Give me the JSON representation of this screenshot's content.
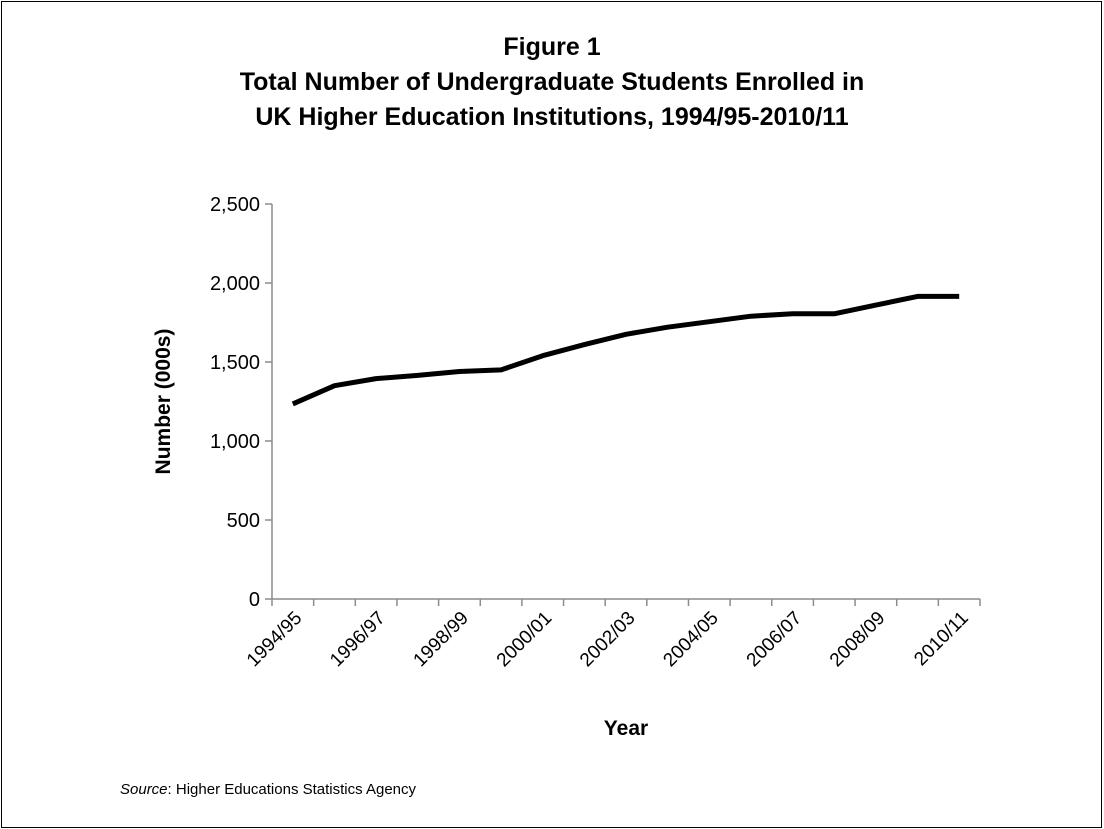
{
  "figure": {
    "number_label": "Figure 1",
    "title_line1": "Total Number of Undergraduate Students Enrolled in",
    "title_line2": "UK Higher Education Institutions, 1994/95-2010/11"
  },
  "source": {
    "label": "Source",
    "separator": ": ",
    "text": "Higher Educations Statistics Agency"
  },
  "chart_data": {
    "type": "line",
    "title": "Total Number of Undergraduate Students Enrolled in UK Higher Education Institutions, 1994/95-2010/11",
    "xlabel": "Year",
    "ylabel": "Number (000s)",
    "ylim": [
      0,
      2500
    ],
    "yticks": [
      0,
      500,
      1000,
      1500,
      2000,
      2500
    ],
    "ytick_labels": [
      "0",
      "500",
      "1,000",
      "1,500",
      "2,000",
      "2,500"
    ],
    "xtick_labels": [
      "1994/95",
      "1996/97",
      "1998/99",
      "2000/01",
      "2002/03",
      "2004/05",
      "2006/07",
      "2008/09",
      "2010/11"
    ],
    "grid": false,
    "line_color": "#000000",
    "x": [
      "1994/95",
      "1995/96",
      "1996/97",
      "1997/98",
      "1998/99",
      "1999/00",
      "2000/01",
      "2001/02",
      "2002/03",
      "2003/04",
      "2004/05",
      "2005/06",
      "2006/07",
      "2007/08",
      "2008/09",
      "2009/10",
      "2010/11"
    ],
    "series": [
      {
        "values": [
          1235,
          1350,
          1395,
          1415,
          1440,
          1450,
          1540,
          1610,
          1675,
          1720,
          1755,
          1790,
          1805,
          1805,
          1860,
          1915,
          1915
        ]
      }
    ]
  }
}
